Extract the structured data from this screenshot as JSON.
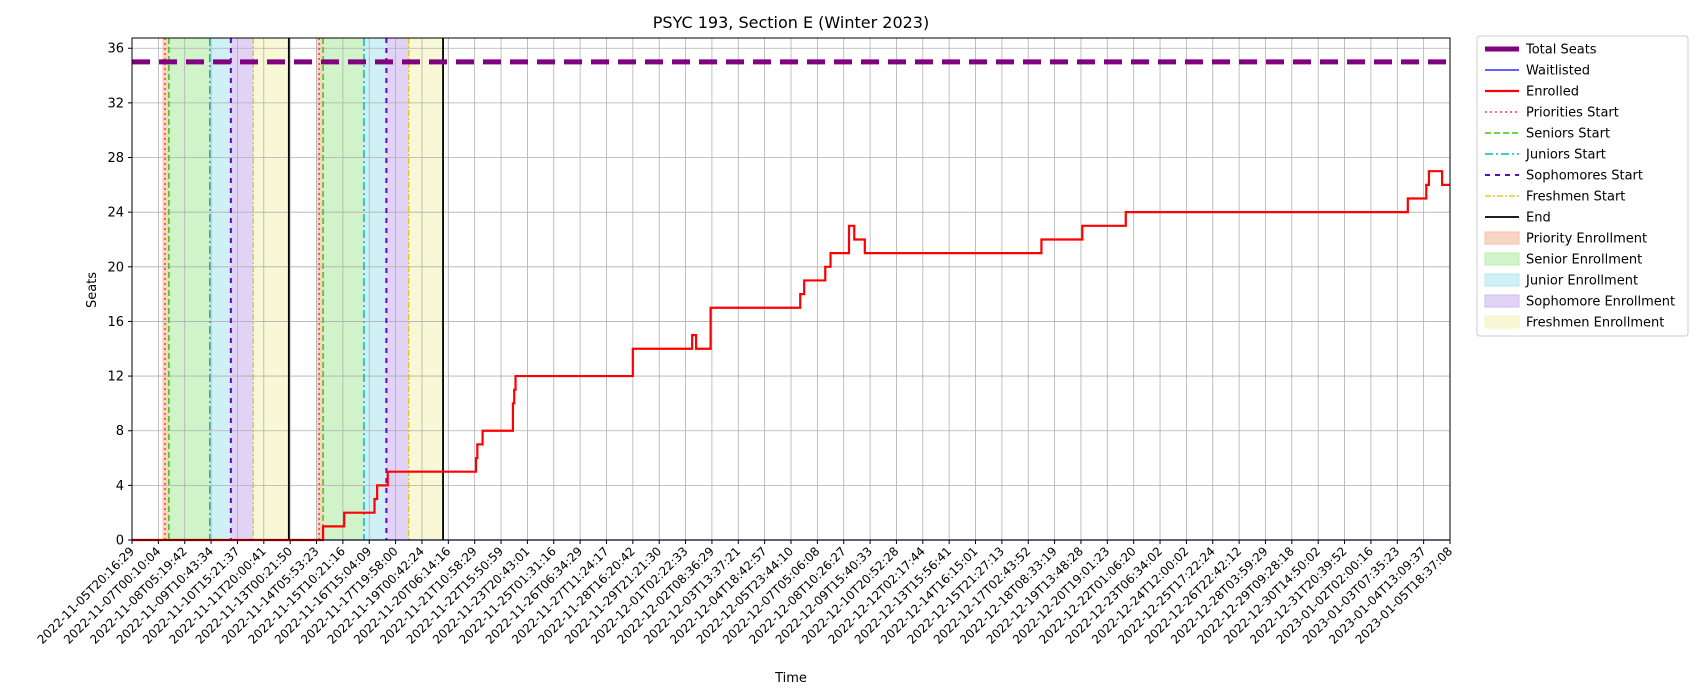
{
  "chart_data": {
    "type": "line",
    "title": "PSYC 193, Section E (Winter 2023)",
    "xlabel": "Time",
    "ylabel": "Seats",
    "ylim": [
      0,
      36.75
    ],
    "yticks": [
      0,
      4,
      8,
      12,
      16,
      20,
      24,
      28,
      32,
      36
    ],
    "grid": true,
    "legend_position": "outside-right",
    "x_tick_labels": [
      "2022-11-05T20:16:29",
      "2022-11-07T00:10:04",
      "2022-11-08T05:19:42",
      "2022-11-09T10:43:34",
      "2022-11-10T15:21:37",
      "2022-11-11T20:00:41",
      "2022-11-13T00:21:50",
      "2022-11-14T05:53:23",
      "2022-11-15T10:21:16",
      "2022-11-16T15:04:09",
      "2022-11-17T19:58:00",
      "2022-11-19T00:42:24",
      "2022-11-20T06:14:16",
      "2022-11-21T10:58:29",
      "2022-11-22T15:50:59",
      "2022-11-23T20:43:01",
      "2022-11-25T01:31:16",
      "2022-11-26T06:34:29",
      "2022-11-27T11:24:17",
      "2022-11-28T16:20:42",
      "2022-11-29T21:21:30",
      "2022-12-01T02:22:33",
      "2022-12-02T08:36:29",
      "2022-12-03T13:37:21",
      "2022-12-04T18:42:57",
      "2022-12-05T23:44:10",
      "2022-12-07T05:06:08",
      "2022-12-08T10:26:27",
      "2022-12-09T15:40:33",
      "2022-12-10T20:52:28",
      "2022-12-12T02:17:44",
      "2022-12-13T15:56:41",
      "2022-12-14T16:15:01",
      "2022-12-15T21:27:13",
      "2022-12-17T02:43:52",
      "2022-12-18T08:33:19",
      "2022-12-19T13:48:28",
      "2022-12-20T19:01:23",
      "2022-12-22T01:06:20",
      "2022-12-23T06:34:02",
      "2022-12-24T12:00:02",
      "2022-12-25T17:22:24",
      "2022-12-26T22:42:12",
      "2022-12-28T03:59:29",
      "2022-12-29T09:28:18",
      "2022-12-30T14:50:02",
      "2022-12-31T20:39:52",
      "2023-01-02T02:00:16",
      "2023-01-03T07:35:23",
      "2023-01-04T13:09:37",
      "2023-01-05T18:37:08"
    ],
    "periods": [
      {
        "name": "Priority Enrollment",
        "start": 1.15,
        "end": 1.4,
        "color": "#f4c0a8"
      },
      {
        "name": "Senior Enrollment",
        "start": 1.4,
        "end": 2.95,
        "color": "#b8ecae"
      },
      {
        "name": "Junior Enrollment",
        "start": 2.95,
        "end": 3.75,
        "color": "#b6e9ef"
      },
      {
        "name": "Sophomore Enrollment",
        "start": 3.75,
        "end": 4.6,
        "color": "#d0bbf0"
      },
      {
        "name": "Freshmen Enrollment",
        "start": 4.6,
        "end": 5.95,
        "color": "#f5f5c2"
      },
      {
        "name": "Priority Enrollment",
        "start": 7.0,
        "end": 7.25,
        "color": "#f4c0a8"
      },
      {
        "name": "Senior Enrollment",
        "start": 7.25,
        "end": 8.8,
        "color": "#b8ecae"
      },
      {
        "name": "Junior Enrollment",
        "start": 8.8,
        "end": 9.65,
        "color": "#b6e9ef"
      },
      {
        "name": "Sophomore Enrollment",
        "start": 9.65,
        "end": 10.5,
        "color": "#d0bbf0"
      },
      {
        "name": "Freshmen Enrollment",
        "start": 10.5,
        "end": 11.8,
        "color": "#f5f5c2"
      }
    ],
    "markers": [
      {
        "name": "Priorities Start",
        "x": 1.25,
        "color": "#ff3b3b",
        "dash": "2,3",
        "width": 1.5
      },
      {
        "name": "Seniors Start",
        "x": 1.4,
        "color": "#33cc00",
        "dash": "6,3",
        "width": 1.5
      },
      {
        "name": "Juniors Start",
        "x": 2.95,
        "color": "#00bbbb",
        "dash": "8,3,2,3",
        "width": 1.5
      },
      {
        "name": "Sophomores Start",
        "x": 3.75,
        "color": "#6600cc",
        "dash": "5,5",
        "width": 2
      },
      {
        "name": "Freshmen Start",
        "x": 4.6,
        "color": "#d8c800",
        "dash": "6,2,2,2",
        "width": 1.2
      },
      {
        "name": "End",
        "x": 5.95,
        "color": "#000000",
        "dash": "",
        "width": 1.8
      },
      {
        "name": "Priorities Start",
        "x": 7.1,
        "color": "#ff3b3b",
        "dash": "2,3",
        "width": 1.5
      },
      {
        "name": "Seniors Start",
        "x": 7.25,
        "color": "#33cc00",
        "dash": "6,3",
        "width": 1.5
      },
      {
        "name": "Juniors Start",
        "x": 8.8,
        "color": "#00bbbb",
        "dash": "8,3,2,3",
        "width": 1.5
      },
      {
        "name": "Sophomores Start",
        "x": 9.65,
        "color": "#6600cc",
        "dash": "5,5",
        "width": 2
      },
      {
        "name": "Freshmen Start",
        "x": 10.5,
        "color": "#d8c800",
        "dash": "6,2,2,2",
        "width": 1.2
      },
      {
        "name": "End",
        "x": 11.8,
        "color": "#000000",
        "dash": "",
        "width": 1.8
      }
    ],
    "series": [
      {
        "name": "Total Seats",
        "color": "#800080",
        "points": [
          [
            0,
            35
          ],
          [
            50,
            35
          ]
        ]
      },
      {
        "name": "Waitlisted",
        "color": "#0000ff",
        "points": [
          [
            0,
            0
          ],
          [
            50,
            0
          ]
        ]
      },
      {
        "name": "Enrolled",
        "color": "#ff0000",
        "step": true,
        "points": [
          [
            0,
            0
          ],
          [
            7.25,
            0
          ],
          [
            7.25,
            1
          ],
          [
            8.05,
            1
          ],
          [
            8.05,
            2
          ],
          [
            9.2,
            2
          ],
          [
            9.2,
            3
          ],
          [
            9.3,
            3
          ],
          [
            9.3,
            4
          ],
          [
            9.7,
            4
          ],
          [
            9.7,
            5
          ],
          [
            13.05,
            5
          ],
          [
            13.05,
            6
          ],
          [
            13.1,
            6
          ],
          [
            13.1,
            7
          ],
          [
            13.3,
            7
          ],
          [
            13.3,
            8
          ],
          [
            14.45,
            8
          ],
          [
            14.45,
            10
          ],
          [
            14.5,
            10
          ],
          [
            14.5,
            11
          ],
          [
            14.55,
            11
          ],
          [
            14.55,
            12
          ],
          [
            19.0,
            12
          ],
          [
            19.0,
            14
          ],
          [
            21.25,
            14
          ],
          [
            21.25,
            15
          ],
          [
            21.4,
            15
          ],
          [
            21.4,
            14
          ],
          [
            21.95,
            14
          ],
          [
            21.95,
            17
          ],
          [
            25.35,
            17
          ],
          [
            25.35,
            18
          ],
          [
            25.5,
            18
          ],
          [
            25.5,
            19
          ],
          [
            26.3,
            19
          ],
          [
            26.3,
            20
          ],
          [
            26.5,
            20
          ],
          [
            26.5,
            21
          ],
          [
            27.2,
            21
          ],
          [
            27.2,
            23
          ],
          [
            27.4,
            23
          ],
          [
            27.4,
            22
          ],
          [
            27.8,
            22
          ],
          [
            27.8,
            21
          ],
          [
            34.5,
            21
          ],
          [
            34.5,
            22
          ],
          [
            36.05,
            22
          ],
          [
            36.05,
            23
          ],
          [
            37.7,
            23
          ],
          [
            37.7,
            24
          ],
          [
            48.4,
            24
          ],
          [
            48.4,
            25
          ],
          [
            49.1,
            25
          ],
          [
            49.1,
            26
          ],
          [
            49.2,
            26
          ],
          [
            49.2,
            27
          ],
          [
            49.7,
            27
          ],
          [
            49.7,
            26
          ],
          [
            50,
            26
          ]
        ]
      }
    ],
    "legend": [
      {
        "label": "Total Seats",
        "kind": "line",
        "color": "#800080",
        "dash": "",
        "width": 5
      },
      {
        "label": "Waitlisted",
        "kind": "line",
        "color": "#0000ff",
        "dash": "",
        "width": 1.2
      },
      {
        "label": "Enrolled",
        "kind": "line",
        "color": "#ff0000",
        "dash": "",
        "width": 2.2
      },
      {
        "label": "Priorities Start",
        "kind": "line",
        "color": "#ff3b3b",
        "dash": "2,3",
        "width": 1.5
      },
      {
        "label": "Seniors Start",
        "kind": "line",
        "color": "#33cc00",
        "dash": "6,3",
        "width": 1.5
      },
      {
        "label": "Juniors Start",
        "kind": "line",
        "color": "#00bbbb",
        "dash": "8,3,2,3",
        "width": 1.5
      },
      {
        "label": "Sophomores Start",
        "kind": "line",
        "color": "#6600cc",
        "dash": "5,5",
        "width": 2
      },
      {
        "label": "Freshmen Start",
        "kind": "line",
        "color": "#d8c800",
        "dash": "6,2,2,2",
        "width": 1.2
      },
      {
        "label": "End",
        "kind": "line",
        "color": "#000000",
        "dash": "",
        "width": 1.8
      },
      {
        "label": "Priority Enrollment",
        "kind": "patch",
        "color": "#f4c0a8"
      },
      {
        "label": "Senior Enrollment",
        "kind": "patch",
        "color": "#b8ecae"
      },
      {
        "label": "Junior Enrollment",
        "kind": "patch",
        "color": "#b6e9ef"
      },
      {
        "label": "Sophomore Enrollment",
        "kind": "patch",
        "color": "#d0bbf0"
      },
      {
        "label": "Freshmen Enrollment",
        "kind": "patch",
        "color": "#f5f5c2"
      }
    ]
  }
}
